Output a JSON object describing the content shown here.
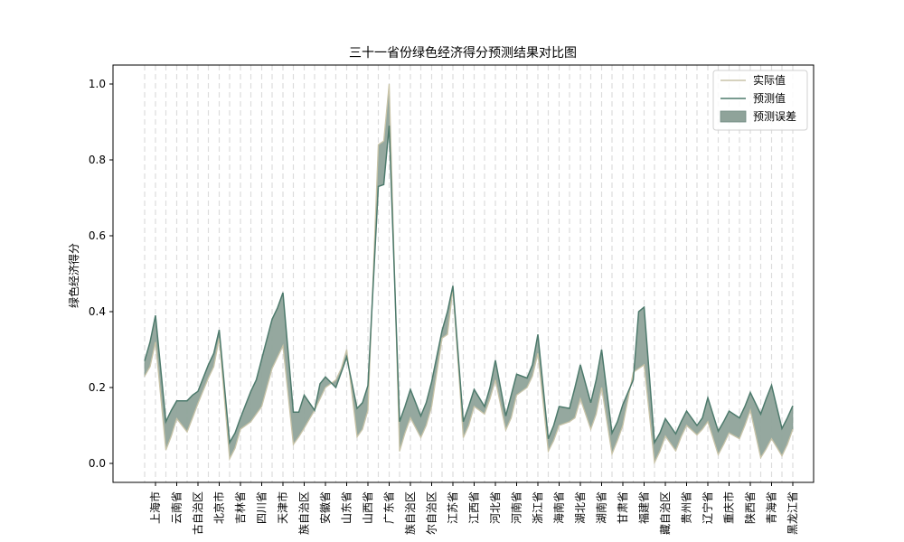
{
  "chart_data": {
    "type": "line",
    "title": "三十一省份绿色经济得分预测结果对比图",
    "xlabel": "",
    "ylabel": "绿色经济得分",
    "ylim": [
      -0.05,
      1.05
    ],
    "yticks": [
      0.0,
      0.2,
      0.4,
      0.6,
      0.8,
      1.0
    ],
    "ytick_labels": [
      "0.0",
      "0.2",
      "0.4",
      "0.6",
      "0.8",
      "1.0"
    ],
    "grid": "vertical-dashed",
    "legend_position": "top-right",
    "legend": [
      {
        "label": "实际值",
        "kind": "line",
        "color": "#c9c4a8"
      },
      {
        "label": "预测值",
        "kind": "line",
        "color": "#4d7a6c"
      },
      {
        "label": "预测误差",
        "kind": "patch",
        "color": "#8fa39a"
      }
    ],
    "categories": [
      "上海市",
      "云南省",
      "内蒙古自治区",
      "北京市",
      "吉林省",
      "四川省",
      "天津市",
      "宁夏回族自治区",
      "安徽省",
      "山东省",
      "山西省",
      "广东省",
      "广西壮族自治区",
      "新疆维吾尔自治区",
      "江苏省",
      "江西省",
      "河北省",
      "河南省",
      "浙江省",
      "海南省",
      "湖北省",
      "湖南省",
      "甘肃省",
      "福建省",
      "西藏自治区",
      "贵州省",
      "辽宁省",
      "重庆市",
      "陕西省",
      "青海省",
      "黑龙江省"
    ],
    "tick_labels": [
      "上海市",
      "云南省",
      "古自治区",
      "北京市",
      "吉林省",
      "四川省",
      "天津市",
      "族自治区",
      "安徽省",
      "山东省",
      "山西省",
      "广东省",
      "族自治区",
      "尔自治区",
      "江苏省",
      "江西省",
      "河北省",
      "河南省",
      "浙江省",
      "海南省",
      "湖北省",
      "湖南省",
      "甘肃省",
      "福建省",
      "藏自治区",
      "贵州省",
      "辽宁省",
      "重庆市",
      "陕西省",
      "青海省",
      "黑龙江省"
    ],
    "series": [
      {
        "name": "实际值",
        "color": "#c9c4a8",
        "values": [
          [
            0.23,
            0.255,
            0.32
          ],
          [
            0.035,
            0.072,
            0.118
          ],
          [
            0.083,
            0.12,
            0.158
          ],
          [
            0.225,
            0.255,
            0.33
          ],
          [
            0.012,
            0.04,
            0.09
          ],
          [
            0.11,
            0.13,
            0.15
          ],
          [
            0.25,
            0.28,
            0.31
          ],
          [
            0.05,
            0.07,
            0.093
          ],
          [
            0.14,
            0.17,
            0.2
          ],
          [
            0.22,
            0.25,
            0.3
          ],
          [
            0.07,
            0.09,
            0.14
          ],
          [
            0.84,
            0.85,
            1.0
          ],
          [
            0.032,
            0.08,
            0.12
          ],
          [
            0.068,
            0.1,
            0.15
          ],
          [
            0.33,
            0.34,
            0.46
          ],
          [
            0.068,
            0.1,
            0.15
          ],
          [
            0.13,
            0.17,
            0.22
          ],
          [
            0.088,
            0.12,
            0.18
          ],
          [
            0.2,
            0.23,
            0.29
          ],
          [
            0.032,
            0.06,
            0.1
          ],
          [
            0.11,
            0.12,
            0.17
          ],
          [
            0.09,
            0.13,
            0.2
          ],
          [
            0.025,
            0.06,
            0.1
          ],
          [
            0.24,
            0.25,
            0.26
          ],
          [
            0.002,
            0.032,
            0.072
          ],
          [
            0.033,
            0.07,
            0.1
          ],
          [
            0.075,
            0.09,
            0.11
          ],
          [
            0.023,
            0.05,
            0.08
          ],
          [
            0.065,
            0.1,
            0.14
          ],
          [
            0.015,
            0.038,
            0.065
          ],
          [
            0.02,
            0.05,
            0.09
          ]
        ]
      },
      {
        "name": "预测值",
        "color": "#4d7a6c",
        "values": [
          [
            0.27,
            0.32,
            0.39
          ],
          [
            0.11,
            0.14,
            0.165
          ],
          [
            0.165,
            0.18,
            0.19
          ],
          [
            0.26,
            0.29,
            0.352
          ],
          [
            0.055,
            0.08,
            0.12
          ],
          [
            0.19,
            0.22,
            0.275
          ],
          [
            0.38,
            0.41,
            0.45
          ],
          [
            0.135,
            0.135,
            0.18
          ],
          [
            0.14,
            0.21,
            0.228
          ],
          [
            0.2,
            0.24,
            0.28
          ],
          [
            0.145,
            0.16,
            0.205
          ],
          [
            0.73,
            0.735,
            0.89
          ],
          [
            0.11,
            0.15,
            0.195
          ],
          [
            0.125,
            0.16,
            0.215
          ],
          [
            0.35,
            0.4,
            0.468
          ],
          [
            0.11,
            0.15,
            0.195
          ],
          [
            0.15,
            0.2,
            0.272
          ],
          [
            0.125,
            0.18,
            0.235
          ],
          [
            0.225,
            0.26,
            0.34
          ],
          [
            0.065,
            0.1,
            0.15
          ],
          [
            0.145,
            0.2,
            0.26
          ],
          [
            0.16,
            0.22,
            0.3
          ],
          [
            0.08,
            0.11,
            0.155
          ],
          [
            0.22,
            0.4,
            0.412
          ],
          [
            0.055,
            0.08,
            0.118
          ],
          [
            0.078,
            0.11,
            0.138
          ],
          [
            0.1,
            0.12,
            0.173
          ],
          [
            0.085,
            0.11,
            0.138
          ],
          [
            0.12,
            0.15,
            0.187
          ],
          [
            0.13,
            0.17,
            0.206
          ],
          [
            0.092,
            0.12,
            0.152
          ]
        ]
      }
    ],
    "error_band": {
      "name": "预测误差",
      "between": [
        "实际值",
        "预测值"
      ],
      "color": "#8fa39a"
    }
  }
}
